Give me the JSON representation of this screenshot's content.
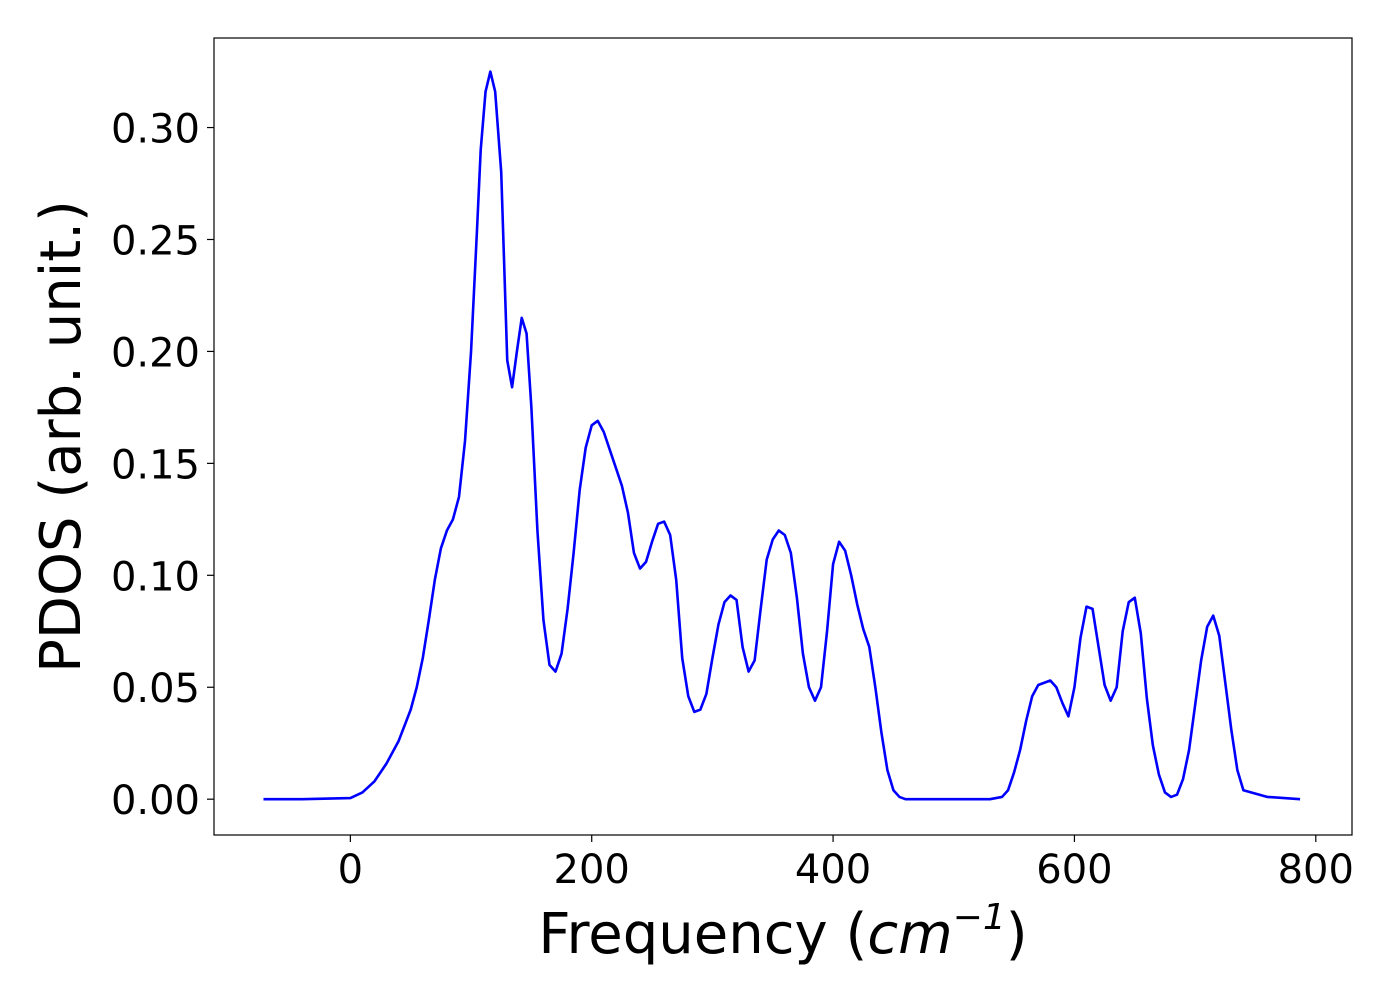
{
  "chart_data": {
    "type": "line",
    "title": "",
    "xlabel": "Frequency (cm⁻¹)",
    "xlabel_parts": {
      "prefix": "Frequency (",
      "unit_base": "cm",
      "unit_exp": "−1",
      "suffix": ")"
    },
    "ylabel": "PDOS (arb. unit.)",
    "xlim": [
      -113,
      830
    ],
    "ylim": [
      -0.016,
      0.34
    ],
    "xticks": [
      0,
      200,
      400,
      600,
      800
    ],
    "xtick_labels": [
      "0",
      "200",
      "400",
      "600",
      "800"
    ],
    "yticks": [
      0.0,
      0.05,
      0.1,
      0.15,
      0.2,
      0.25,
      0.3
    ],
    "ytick_labels": [
      "0.00",
      "0.05",
      "0.10",
      "0.15",
      "0.20",
      "0.25",
      "0.30"
    ],
    "grid": false,
    "legend": "none",
    "series": [
      {
        "color": "#0000ff",
        "x": [
          -72,
          -40,
          0,
          10,
          20,
          30,
          40,
          50,
          55,
          60,
          65,
          70,
          75,
          80,
          85,
          90,
          95,
          100,
          105,
          108,
          112,
          116,
          120,
          125,
          130,
          134,
          138,
          142,
          146,
          150,
          155,
          160,
          165,
          170,
          175,
          180,
          185,
          190,
          195,
          200,
          205,
          210,
          215,
          220,
          225,
          230,
          235,
          240,
          245,
          250,
          255,
          260,
          265,
          270,
          275,
          280,
          285,
          290,
          295,
          300,
          305,
          310,
          315,
          320,
          325,
          330,
          335,
          340,
          345,
          350,
          355,
          360,
          365,
          370,
          375,
          380,
          385,
          390,
          395,
          400,
          405,
          410,
          415,
          420,
          425,
          430,
          435,
          440,
          445,
          450,
          455,
          460,
          500,
          530,
          540,
          545,
          550,
          555,
          560,
          565,
          570,
          575,
          580,
          585,
          590,
          595,
          600,
          605,
          610,
          615,
          620,
          625,
          630,
          635,
          640,
          645,
          650,
          655,
          660,
          665,
          670,
          675,
          680,
          685,
          690,
          695,
          700,
          705,
          710,
          715,
          720,
          725,
          730,
          735,
          740,
          760,
          787
        ],
        "y": [
          0.0,
          0.0,
          0.0005,
          0.003,
          0.008,
          0.016,
          0.026,
          0.04,
          0.05,
          0.063,
          0.08,
          0.098,
          0.112,
          0.12,
          0.125,
          0.135,
          0.16,
          0.2,
          0.255,
          0.29,
          0.316,
          0.325,
          0.316,
          0.28,
          0.196,
          0.184,
          0.2,
          0.215,
          0.208,
          0.175,
          0.12,
          0.08,
          0.06,
          0.057,
          0.065,
          0.085,
          0.11,
          0.138,
          0.157,
          0.167,
          0.169,
          0.164,
          0.156,
          0.148,
          0.14,
          0.128,
          0.11,
          0.103,
          0.106,
          0.115,
          0.123,
          0.124,
          0.118,
          0.098,
          0.063,
          0.046,
          0.039,
          0.04,
          0.047,
          0.063,
          0.078,
          0.088,
          0.091,
          0.089,
          0.068,
          0.057,
          0.062,
          0.085,
          0.107,
          0.116,
          0.12,
          0.118,
          0.11,
          0.09,
          0.065,
          0.05,
          0.044,
          0.05,
          0.075,
          0.105,
          0.115,
          0.111,
          0.1,
          0.087,
          0.076,
          0.068,
          0.05,
          0.03,
          0.013,
          0.004,
          0.001,
          0.0,
          0.0,
          0.0,
          0.001,
          0.004,
          0.012,
          0.022,
          0.035,
          0.046,
          0.051,
          0.052,
          0.053,
          0.05,
          0.043,
          0.037,
          0.05,
          0.072,
          0.086,
          0.085,
          0.068,
          0.051,
          0.044,
          0.05,
          0.075,
          0.088,
          0.09,
          0.074,
          0.045,
          0.024,
          0.011,
          0.003,
          0.001,
          0.002,
          0.009,
          0.022,
          0.042,
          0.062,
          0.077,
          0.082,
          0.073,
          0.052,
          0.031,
          0.013,
          0.004,
          0.001,
          0.0
        ]
      }
    ]
  }
}
